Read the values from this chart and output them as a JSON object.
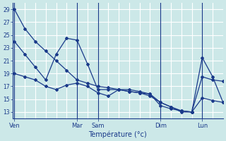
{
  "xlabel": "Température (°c)",
  "bg_color": "#cce8e8",
  "grid_color": "#ffffff",
  "line_color": "#1a3a8a",
  "ylim": [
    12,
    30
  ],
  "yticks": [
    13,
    15,
    17,
    19,
    21,
    23,
    25,
    27,
    29
  ],
  "day_labels": [
    "Ven",
    "Mar",
    "Sam",
    "Dim",
    "Lun"
  ],
  "day_x": [
    0,
    72,
    96,
    168,
    216
  ],
  "xlim": [
    -2,
    240
  ],
  "series": [
    {
      "x": [
        0,
        12,
        24,
        36,
        48,
        60,
        72,
        84,
        96,
        108,
        120,
        132,
        144,
        156,
        168,
        180,
        192,
        204,
        216,
        228,
        240
      ],
      "y": [
        29,
        26,
        24,
        22.5,
        21,
        19.5,
        18,
        17.5,
        17,
        16.8,
        16.5,
        16.2,
        16.0,
        15.8,
        14.0,
        13.5,
        13.2,
        13.0,
        15.2,
        14.8,
        14.5
      ]
    },
    {
      "x": [
        0,
        12,
        24,
        36,
        48,
        60,
        72,
        84,
        96,
        108,
        120,
        132,
        144,
        156,
        168,
        180,
        192,
        204,
        216,
        228,
        240
      ],
      "y": [
        24,
        22,
        20,
        18,
        22,
        24.5,
        24.2,
        20.5,
        16.5,
        16.5,
        16.5,
        16.2,
        16.0,
        15.5,
        14.5,
        13.8,
        13.2,
        13.0,
        21.5,
        18.5,
        14.5
      ]
    },
    {
      "x": [
        0,
        12,
        24,
        36,
        48,
        60,
        72,
        84,
        96,
        108,
        120,
        132,
        144,
        156,
        168,
        180,
        192,
        204,
        216,
        228,
        240
      ],
      "y": [
        19,
        18.5,
        18,
        17,
        16.5,
        17.2,
        17.5,
        17,
        16.0,
        15.5,
        16.5,
        16.5,
        16.2,
        15.8,
        14.5,
        13.8,
        13.0,
        13.0,
        18.5,
        18.0,
        17.8
      ]
    }
  ]
}
